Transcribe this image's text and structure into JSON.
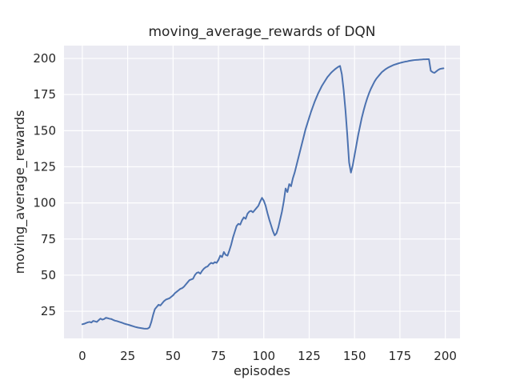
{
  "chart_data": {
    "type": "line",
    "title": "moving_average_rewards of DQN",
    "xlabel": "episodes",
    "ylabel": "moving_average_rewards",
    "series_name": "DQN moving average reward",
    "x_description": "episode index 0..199 (one point per episode)",
    "xlim": [
      -10.1,
      208.1
    ],
    "ylim": [
      6.2,
      208.9
    ],
    "x_ticks": [
      0,
      25,
      50,
      75,
      100,
      125,
      150,
      175,
      200
    ],
    "y_ticks": [
      25,
      50,
      75,
      100,
      125,
      150,
      175,
      200
    ],
    "grid": true,
    "legend": "none",
    "colors": {
      "line": "#4c72b0",
      "plot_background": "#eaeaf2",
      "gridline": "#ffffff",
      "text": "#262626",
      "figure_background": "#ffffff"
    },
    "values": [
      16.0,
      16.3,
      16.8,
      17.3,
      17.6,
      17.2,
      18.3,
      18.0,
      17.6,
      18.8,
      19.9,
      19.2,
      19.6,
      20.5,
      20.2,
      19.8,
      19.6,
      19.0,
      18.5,
      18.2,
      17.8,
      17.4,
      17.0,
      16.5,
      16.1,
      15.8,
      15.4,
      15.0,
      14.6,
      14.2,
      13.9,
      13.6,
      13.4,
      13.2,
      13.0,
      12.9,
      13.0,
      13.8,
      17.5,
      22.5,
      26.5,
      28.0,
      29.5,
      29.0,
      30.5,
      32.0,
      33.0,
      33.5,
      34.0,
      35.0,
      36.0,
      37.5,
      38.5,
      39.5,
      40.5,
      41.0,
      42.0,
      43.5,
      45.0,
      46.5,
      47.0,
      47.5,
      50.0,
      51.5,
      52.0,
      51.0,
      53.0,
      54.5,
      55.5,
      56.0,
      57.5,
      58.5,
      58.0,
      59.0,
      58.5,
      60.5,
      63.5,
      62.5,
      66.0,
      64.0,
      63.5,
      67.0,
      71.0,
      76.0,
      80.0,
      84.0,
      85.5,
      85.0,
      88.0,
      90.0,
      89.0,
      92.5,
      94.0,
      94.5,
      93.5,
      95.0,
      96.5,
      98.0,
      101.0,
      103.5,
      101.5,
      98.0,
      93.0,
      88.5,
      84.5,
      80.5,
      77.5,
      79.0,
      83.0,
      88.5,
      94.0,
      101.0,
      110.0,
      107.5,
      113.0,
      111.5,
      117.0,
      121.0,
      126.0,
      131.0,
      136.0,
      141.0,
      146.0,
      151.0,
      155.0,
      159.0,
      163.0,
      166.5,
      170.0,
      173.0,
      176.0,
      178.5,
      181.0,
      183.0,
      185.0,
      187.0,
      188.5,
      190.0,
      191.2,
      192.3,
      193.3,
      194.2,
      194.8,
      189.0,
      178.0,
      164.0,
      147.0,
      128.0,
      121.0,
      126.0,
      133.0,
      140.0,
      147.0,
      153.0,
      159.0,
      164.0,
      168.5,
      172.5,
      176.0,
      179.0,
      181.5,
      184.0,
      186.0,
      187.5,
      189.0,
      190.5,
      191.5,
      192.5,
      193.3,
      194.0,
      194.6,
      195.2,
      195.7,
      196.1,
      196.5,
      196.9,
      197.2,
      197.5,
      197.8,
      198.0,
      198.3,
      198.5,
      198.7,
      198.9,
      199.0,
      199.1,
      199.2,
      199.3,
      199.4,
      199.4,
      199.5,
      199.5,
      191.5,
      190.5,
      190.0,
      191.0,
      192.0,
      192.7,
      193.0,
      193.2
    ]
  }
}
